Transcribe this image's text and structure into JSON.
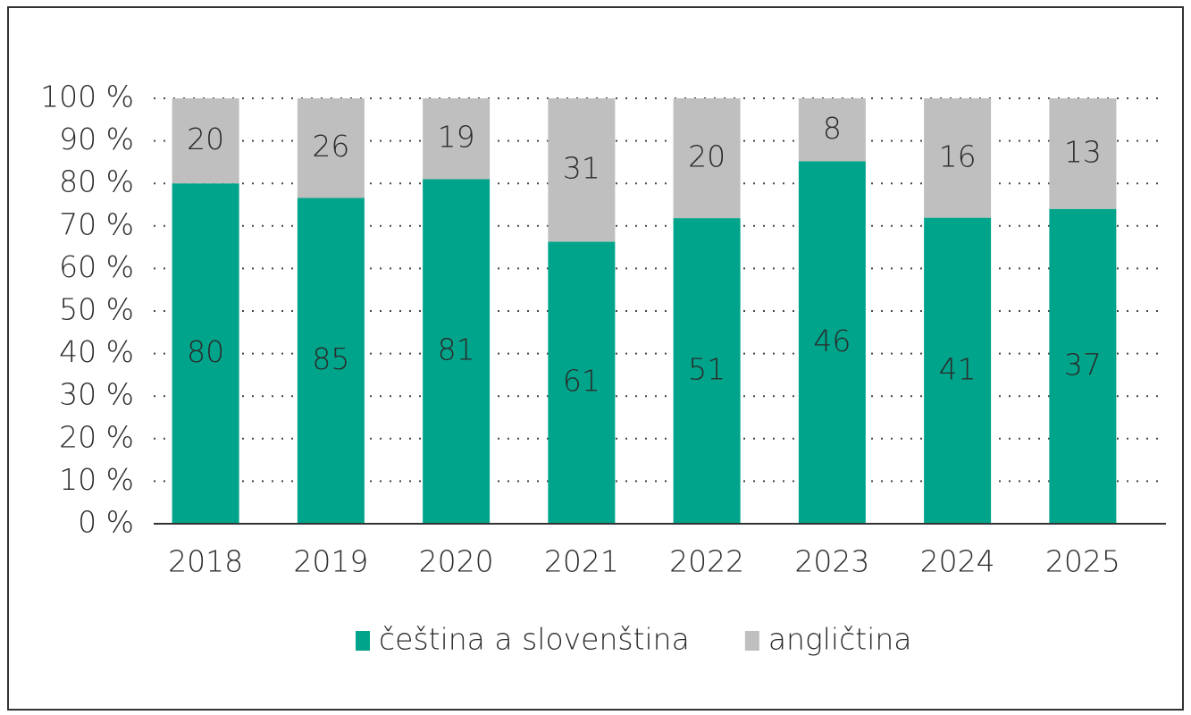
{
  "chart_data": {
    "type": "bar",
    "stacking": "percent",
    "categories": [
      "2018",
      "2019",
      "2020",
      "2021",
      "2022",
      "2023",
      "2024",
      "2025"
    ],
    "series": [
      {
        "name": "čeština a slovenština",
        "color": "#00a48a",
        "values": [
          80,
          85,
          81,
          61,
          51,
          46,
          41,
          37
        ]
      },
      {
        "name": "angličtina",
        "color": "#bfbfbf",
        "values": [
          20,
          26,
          19,
          31,
          20,
          8,
          16,
          13
        ]
      }
    ],
    "ylim": [
      0,
      100
    ],
    "yticks": [
      {
        "value": 0,
        "label": "0 %"
      },
      {
        "value": 10,
        "label": "10 %"
      },
      {
        "value": 20,
        "label": "20 %"
      },
      {
        "value": 30,
        "label": "30 %"
      },
      {
        "value": 40,
        "label": "40 %"
      },
      {
        "value": 50,
        "label": "50 %"
      },
      {
        "value": 60,
        "label": "60 %"
      },
      {
        "value": 70,
        "label": "70 %"
      },
      {
        "value": 80,
        "label": "80 %"
      },
      {
        "value": 90,
        "label": "90 %"
      },
      {
        "value": 100,
        "label": "100 %"
      }
    ],
    "grid": true,
    "legend": "bottom"
  }
}
